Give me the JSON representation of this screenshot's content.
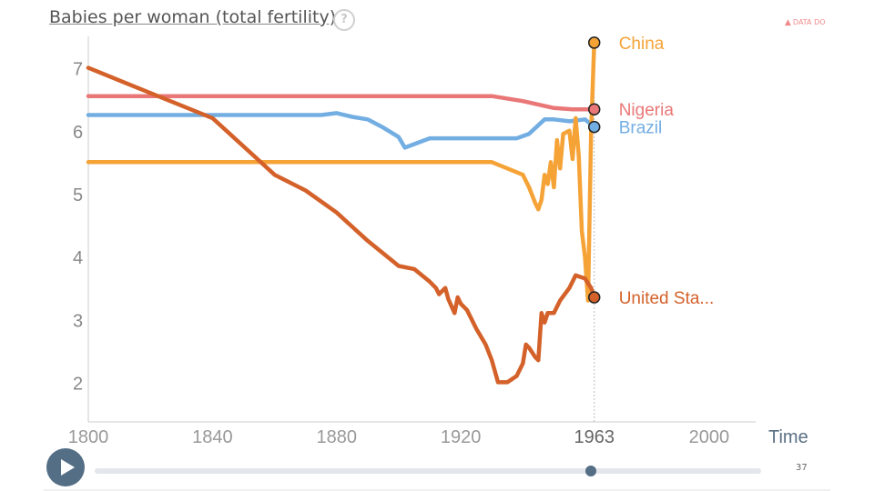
{
  "header": {
    "title": "Babies per woman (total fertility)",
    "help_icon": "?",
    "warning": "DATA DO"
  },
  "controls": {
    "play_icon": "play-icon",
    "slider_value": 1963,
    "slider_min": 1800,
    "slider_max": 2015,
    "page_number": "37"
  },
  "colors": {
    "China": "#f5a337",
    "Nigeria": "#ea7777",
    "Brazil": "#73aee3",
    "United States": "#d4612a",
    "axis": "#cccccc",
    "tick": "#888888"
  },
  "chart_data": {
    "type": "line",
    "title": "Babies per woman (total fertility)",
    "xlabel": "Time",
    "ylabel": "",
    "xlim": [
      1800,
      2015
    ],
    "ylim": [
      1.5,
      7.5
    ],
    "x_ticks": [
      1800,
      1840,
      1880,
      1920,
      1963,
      2000
    ],
    "y_ticks": [
      2,
      3,
      4,
      5,
      6,
      7
    ],
    "current_year": 1963,
    "series": [
      {
        "name": "Nigeria",
        "label": "Nigeria",
        "points": [
          [
            1800,
            6.55
          ],
          [
            1920,
            6.55
          ],
          [
            1930,
            6.55
          ],
          [
            1940,
            6.47
          ],
          [
            1950,
            6.36
          ],
          [
            1956,
            6.34
          ],
          [
            1963,
            6.34
          ]
        ]
      },
      {
        "name": "Brazil",
        "label": "Brazil",
        "points": [
          [
            1800,
            6.25
          ],
          [
            1875,
            6.25
          ],
          [
            1880,
            6.28
          ],
          [
            1885,
            6.22
          ],
          [
            1890,
            6.18
          ],
          [
            1895,
            6.05
          ],
          [
            1900,
            5.9
          ],
          [
            1902,
            5.73
          ],
          [
            1910,
            5.88
          ],
          [
            1920,
            5.88
          ],
          [
            1930,
            5.88
          ],
          [
            1938,
            5.88
          ],
          [
            1942,
            5.95
          ],
          [
            1947,
            6.18
          ],
          [
            1950,
            6.18
          ],
          [
            1955,
            6.15
          ],
          [
            1960,
            6.18
          ],
          [
            1963,
            6.06
          ]
        ]
      },
      {
        "name": "China",
        "label": "China",
        "points": [
          [
            1800,
            5.5
          ],
          [
            1930,
            5.5
          ],
          [
            1940,
            5.3
          ],
          [
            1942,
            5.1
          ],
          [
            1944,
            4.85
          ],
          [
            1945,
            4.75
          ],
          [
            1946,
            4.9
          ],
          [
            1947,
            5.3
          ],
          [
            1948,
            5.15
          ],
          [
            1949,
            5.5
          ],
          [
            1950,
            5.1
          ],
          [
            1951,
            5.85
          ],
          [
            1952,
            5.4
          ],
          [
            1953,
            5.95
          ],
          [
            1955,
            6.0
          ],
          [
            1956,
            5.55
          ],
          [
            1957,
            6.2
          ],
          [
            1958,
            5.6
          ],
          [
            1959,
            4.4
          ],
          [
            1960,
            4.0
          ],
          [
            1961,
            3.3
          ],
          [
            1962,
            6.0
          ],
          [
            1963,
            7.4
          ]
        ]
      },
      {
        "name": "United States",
        "label": "United Sta...",
        "points": [
          [
            1800,
            7.0
          ],
          [
            1820,
            6.6
          ],
          [
            1840,
            6.2
          ],
          [
            1850,
            5.75
          ],
          [
            1860,
            5.3
          ],
          [
            1870,
            5.05
          ],
          [
            1880,
            4.7
          ],
          [
            1890,
            4.25
          ],
          [
            1900,
            3.85
          ],
          [
            1905,
            3.8
          ],
          [
            1910,
            3.6
          ],
          [
            1912,
            3.5
          ],
          [
            1913,
            3.4
          ],
          [
            1915,
            3.5
          ],
          [
            1916,
            3.32
          ],
          [
            1918,
            3.1
          ],
          [
            1919,
            3.35
          ],
          [
            1920,
            3.25
          ],
          [
            1922,
            3.15
          ],
          [
            1925,
            2.85
          ],
          [
            1928,
            2.6
          ],
          [
            1930,
            2.35
          ],
          [
            1932,
            2.0
          ],
          [
            1935,
            2.0
          ],
          [
            1938,
            2.1
          ],
          [
            1940,
            2.3
          ],
          [
            1941,
            2.6
          ],
          [
            1942,
            2.55
          ],
          [
            1944,
            2.4
          ],
          [
            1945,
            2.35
          ],
          [
            1946,
            3.1
          ],
          [
            1947,
            2.95
          ],
          [
            1948,
            3.1
          ],
          [
            1950,
            3.1
          ],
          [
            1952,
            3.3
          ],
          [
            1955,
            3.5
          ],
          [
            1957,
            3.7
          ],
          [
            1960,
            3.65
          ],
          [
            1962,
            3.5
          ],
          [
            1963,
            3.35
          ]
        ]
      }
    ]
  }
}
